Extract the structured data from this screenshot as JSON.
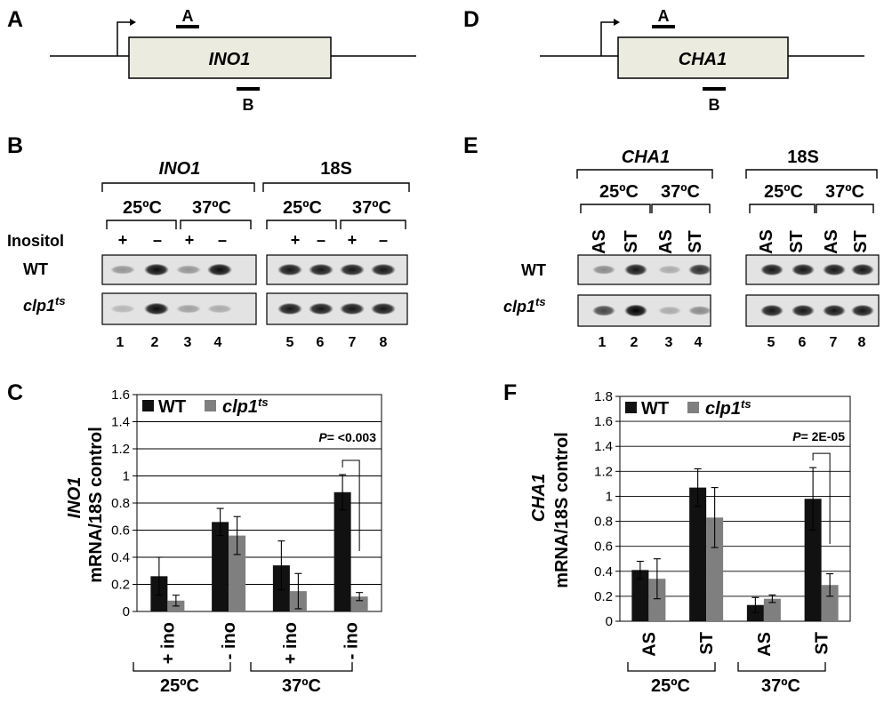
{
  "colors": {
    "wt": "#111111",
    "mut": "#7f7f7f",
    "gene_box": "#ecebdf"
  },
  "panels": {
    "A": {
      "letter": "A",
      "gene": "INO1",
      "primer_a": "A",
      "primer_b": "B"
    },
    "D": {
      "letter": "D",
      "gene": "CHA1",
      "primer_a": "A",
      "primer_b": "B"
    },
    "B": {
      "letter": "B",
      "gene": "INO1",
      "control": "18S",
      "temp_25": "25ºC",
      "temp_37": "37ºC",
      "row_header": "Inositol",
      "signs": [
        "+",
        "–",
        "+",
        "–"
      ],
      "row_wt": "WT",
      "row_mut": "clp1",
      "row_mut_sup": "ts",
      "lanes": [
        "1",
        "2",
        "3",
        "4",
        "5",
        "6",
        "7",
        "8"
      ]
    },
    "E": {
      "letter": "E",
      "gene": "CHA1",
      "control": "18S",
      "temp_25": "25ºC",
      "temp_37": "37ºC",
      "conds": [
        "AS",
        "ST",
        "AS",
        "ST"
      ],
      "row_wt": "WT",
      "row_mut": "clp1",
      "row_mut_sup": "ts",
      "lanes": [
        "1",
        "2",
        "3",
        "4",
        "5",
        "6",
        "7",
        "8"
      ]
    },
    "C": {
      "letter": "C",
      "temp_25": "25ºC",
      "temp_37": "37ºC"
    },
    "F": {
      "letter": "F",
      "temp_25": "25ºC",
      "temp_37": "37ºC"
    }
  },
  "chart_data": [
    {
      "type": "bar",
      "categories": [
        "+ ino",
        "- ino",
        "+ ino",
        "- ino"
      ],
      "groups": [
        "25ºC",
        "37ºC"
      ],
      "ylabel_gene": "INO1",
      "ylabel": "mRNA/18S control",
      "ylim": [
        0,
        1.6
      ],
      "yticks": [
        "0",
        "0.2",
        "0.4",
        "0.6",
        "0.8",
        "1",
        "1.2",
        "1.4",
        "1.6"
      ],
      "series": [
        {
          "name": "WT",
          "values": [
            0.26,
            0.66,
            0.34,
            0.88
          ],
          "errors": [
            0.14,
            0.1,
            0.18,
            0.13
          ]
        },
        {
          "name": "clp1",
          "name_sup": "ts",
          "values": [
            0.08,
            0.56,
            0.15,
            0.11
          ],
          "errors": [
            0.04,
            0.14,
            0.13,
            0.03
          ]
        }
      ],
      "annotation": {
        "p_label": "P",
        "p_value": "= <0.003"
      },
      "legend": "top-left",
      "grid": true
    },
    {
      "type": "bar",
      "categories": [
        "AS",
        "ST",
        "AS",
        "ST"
      ],
      "groups": [
        "25ºC",
        "37ºC"
      ],
      "ylabel_gene": "CHA1",
      "ylabel": "mRNA/18S control",
      "ylim": [
        0,
        1.8
      ],
      "yticks": [
        "0",
        "0.2",
        "0.4",
        "0.6",
        "0.8",
        "1",
        "1.2",
        "1.4",
        "1.6",
        "1.8"
      ],
      "series": [
        {
          "name": "WT",
          "values": [
            0.41,
            1.07,
            0.13,
            0.98
          ],
          "errors": [
            0.07,
            0.15,
            0.06,
            0.25
          ]
        },
        {
          "name": "clp1",
          "name_sup": "ts",
          "values": [
            0.34,
            0.83,
            0.18,
            0.29
          ],
          "errors": [
            0.16,
            0.24,
            0.03,
            0.09
          ]
        }
      ],
      "annotation": {
        "p_label": "P",
        "p_value": "= 2E-05"
      },
      "legend": "top-left",
      "grid": true
    }
  ]
}
